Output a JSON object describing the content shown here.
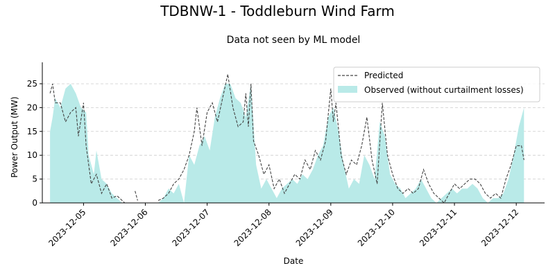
{
  "chart_data": {
    "type": "line",
    "title": "TDBNW-1 - Toddleburn Wind Farm",
    "subtitle": "Data not seen by ML model",
    "xlabel": "Date",
    "ylabel": "Power Output (MW)",
    "ylim": [
      0,
      29.5
    ],
    "xlim": [
      "2023-12-04 08:00",
      "2023-12-12 11:00"
    ],
    "x_ticks": [
      "2023-12-05",
      "2023-12-06",
      "2023-12-07",
      "2023-12-08",
      "2023-12-09",
      "2023-12-10",
      "2023-12-11",
      "2023-12-12"
    ],
    "y_ticks": [
      0,
      5,
      10,
      15,
      20,
      25
    ],
    "grid": "y-dashed",
    "legend_position": "top-right",
    "colors": {
      "predicted": "#444444",
      "observed": "#b9eae8"
    },
    "series": [
      {
        "name": "Predicted",
        "style": "dashed-line",
        "points": [
          [
            "2023-12-04 11:00",
            23
          ],
          [
            "2023-12-04 12:00",
            25
          ],
          [
            "2023-12-04 13:00",
            21
          ],
          [
            "2023-12-04 15:00",
            21
          ],
          [
            "2023-12-04 17:00",
            17
          ],
          [
            "2023-12-04 19:00",
            19
          ],
          [
            "2023-12-04 21:00",
            20
          ],
          [
            "2023-12-04 22:00",
            14
          ],
          [
            "2023-12-05 00:00",
            21
          ],
          [
            "2023-12-05 01:00",
            12
          ],
          [
            "2023-12-05 03:00",
            4
          ],
          [
            "2023-12-05 05:00",
            6
          ],
          [
            "2023-12-05 07:00",
            2
          ],
          [
            "2023-12-05 09:00",
            4
          ],
          [
            "2023-12-05 11:00",
            1
          ],
          [
            "2023-12-05 13:00",
            1.5
          ],
          [
            "2023-12-05 15:00",
            0.5
          ],
          [
            "2023-12-05 16:00",
            0
          ],
          [
            "2023-12-05 19:00",
            null
          ],
          [
            "2023-12-05 20:00",
            2.5
          ],
          [
            "2023-12-05 21:00",
            0.5
          ],
          [
            "2023-12-05 22:00",
            null
          ],
          [
            "2023-12-06 05:00",
            0.5
          ],
          [
            "2023-12-06 07:00",
            1
          ],
          [
            "2023-12-06 09:00",
            2
          ],
          [
            "2023-12-06 11:00",
            4
          ],
          [
            "2023-12-06 13:00",
            5
          ],
          [
            "2023-12-06 15:00",
            7
          ],
          [
            "2023-12-06 17:00",
            10
          ],
          [
            "2023-12-06 19:00",
            15
          ],
          [
            "2023-12-06 20:00",
            20
          ],
          [
            "2023-12-06 22:00",
            12
          ],
          [
            "2023-12-07 00:00",
            19
          ],
          [
            "2023-12-07 02:00",
            21
          ],
          [
            "2023-12-07 04:00",
            17
          ],
          [
            "2023-12-07 06:00",
            22
          ],
          [
            "2023-12-07 08:00",
            27
          ],
          [
            "2023-12-07 10:00",
            20
          ],
          [
            "2023-12-07 12:00",
            16
          ],
          [
            "2023-12-07 14:00",
            17
          ],
          [
            "2023-12-07 15:00",
            23
          ],
          [
            "2023-12-07 16:00",
            16
          ],
          [
            "2023-12-07 17:00",
            25
          ],
          [
            "2023-12-07 18:00",
            13
          ],
          [
            "2023-12-07 20:00",
            10
          ],
          [
            "2023-12-07 22:00",
            6
          ],
          [
            "2023-12-08 00:00",
            8
          ],
          [
            "2023-12-08 02:00",
            3
          ],
          [
            "2023-12-08 04:00",
            5
          ],
          [
            "2023-12-08 06:00",
            2
          ],
          [
            "2023-12-08 08:00",
            4
          ],
          [
            "2023-12-08 10:00",
            6
          ],
          [
            "2023-12-08 12:00",
            5
          ],
          [
            "2023-12-08 14:00",
            9
          ],
          [
            "2023-12-08 16:00",
            7
          ],
          [
            "2023-12-08 18:00",
            11
          ],
          [
            "2023-12-08 20:00",
            9
          ],
          [
            "2023-12-08 22:00",
            13
          ],
          [
            "2023-12-09 00:00",
            24
          ],
          [
            "2023-12-09 01:00",
            17
          ],
          [
            "2023-12-09 02:00",
            21
          ],
          [
            "2023-12-09 04:00",
            10
          ],
          [
            "2023-12-09 06:00",
            6
          ],
          [
            "2023-12-09 08:00",
            9
          ],
          [
            "2023-12-09 10:00",
            8
          ],
          [
            "2023-12-09 12:00",
            12
          ],
          [
            "2023-12-09 14:00",
            18
          ],
          [
            "2023-12-09 16:00",
            9
          ],
          [
            "2023-12-09 18:00",
            4
          ],
          [
            "2023-12-09 20:00",
            21
          ],
          [
            "2023-12-09 22:00",
            10
          ],
          [
            "2023-12-10 00:00",
            6
          ],
          [
            "2023-12-10 02:00",
            3
          ],
          [
            "2023-12-10 04:00",
            2
          ],
          [
            "2023-12-10 06:00",
            3
          ],
          [
            "2023-12-10 08:00",
            2
          ],
          [
            "2023-12-10 10:00",
            3
          ],
          [
            "2023-12-10 12:00",
            7
          ],
          [
            "2023-12-10 14:00",
            4
          ],
          [
            "2023-12-10 16:00",
            2
          ],
          [
            "2023-12-10 18:00",
            1
          ],
          [
            "2023-12-10 20:00",
            0
          ],
          [
            "2023-12-10 22:00",
            2
          ],
          [
            "2023-12-11 00:00",
            4
          ],
          [
            "2023-12-11 02:00",
            3
          ],
          [
            "2023-12-11 04:00",
            4
          ],
          [
            "2023-12-11 06:00",
            5
          ],
          [
            "2023-12-11 08:00",
            5
          ],
          [
            "2023-12-11 10:00",
            4
          ],
          [
            "2023-12-11 12:00",
            2
          ],
          [
            "2023-12-11 14:00",
            1
          ],
          [
            "2023-12-11 16:00",
            2
          ],
          [
            "2023-12-11 18:00",
            1
          ],
          [
            "2023-12-11 20:00",
            5
          ],
          [
            "2023-12-11 22:00",
            8
          ],
          [
            "2023-12-12 00:00",
            12
          ],
          [
            "2023-12-12 02:00",
            12
          ],
          [
            "2023-12-12 03:00",
            9
          ]
        ]
      },
      {
        "name": "Observed (without curtailment losses)",
        "style": "filled-area",
        "points": [
          [
            "2023-12-04 11:00",
            15
          ],
          [
            "2023-12-04 12:00",
            18
          ],
          [
            "2023-12-04 13:00",
            22
          ],
          [
            "2023-12-04 15:00",
            20
          ],
          [
            "2023-12-04 17:00",
            24
          ],
          [
            "2023-12-04 19:00",
            25
          ],
          [
            "2023-12-04 21:00",
            23
          ],
          [
            "2023-12-04 23:00",
            20
          ],
          [
            "2023-12-05 01:00",
            19
          ],
          [
            "2023-12-05 02:00",
            10
          ],
          [
            "2023-12-05 04:00",
            6
          ],
          [
            "2023-12-05 05:00",
            11
          ],
          [
            "2023-12-05 07:00",
            5
          ],
          [
            "2023-12-05 09:00",
            4
          ],
          [
            "2023-12-05 11:00",
            2
          ],
          [
            "2023-12-05 13:00",
            1
          ],
          [
            "2023-12-05 15:00",
            0
          ],
          [
            "2023-12-06 05:00",
            0
          ],
          [
            "2023-12-06 07:00",
            1
          ],
          [
            "2023-12-06 09:00",
            3
          ],
          [
            "2023-12-06 11:00",
            2
          ],
          [
            "2023-12-06 13:00",
            4
          ],
          [
            "2023-12-06 15:00",
            0
          ],
          [
            "2023-12-06 17:00",
            10
          ],
          [
            "2023-12-06 19:00",
            8
          ],
          [
            "2023-12-06 21:00",
            12
          ],
          [
            "2023-12-06 23:00",
            14
          ],
          [
            "2023-12-07 01:00",
            11
          ],
          [
            "2023-12-07 03:00",
            18
          ],
          [
            "2023-12-07 05:00",
            22
          ],
          [
            "2023-12-07 07:00",
            25
          ],
          [
            "2023-12-07 09:00",
            25
          ],
          [
            "2023-12-07 11:00",
            22
          ],
          [
            "2023-12-07 13:00",
            21
          ],
          [
            "2023-12-07 15:00",
            18
          ],
          [
            "2023-12-07 17:00",
            25
          ],
          [
            "2023-12-07 19:00",
            8
          ],
          [
            "2023-12-07 21:00",
            3
          ],
          [
            "2023-12-07 23:00",
            5
          ],
          [
            "2023-12-08 01:00",
            3
          ],
          [
            "2023-12-08 03:00",
            1
          ],
          [
            "2023-12-08 05:00",
            3
          ],
          [
            "2023-12-08 07:00",
            4
          ],
          [
            "2023-12-08 09:00",
            5
          ],
          [
            "2023-12-08 11:00",
            4
          ],
          [
            "2023-12-08 13:00",
            6
          ],
          [
            "2023-12-08 15:00",
            5
          ],
          [
            "2023-12-08 17:00",
            7
          ],
          [
            "2023-12-08 19:00",
            10
          ],
          [
            "2023-12-08 21:00",
            12
          ],
          [
            "2023-12-08 23:00",
            18
          ],
          [
            "2023-12-09 01:00",
            20
          ],
          [
            "2023-12-09 03:00",
            15
          ],
          [
            "2023-12-09 05:00",
            8
          ],
          [
            "2023-12-09 07:00",
            3
          ],
          [
            "2023-12-09 09:00",
            5
          ],
          [
            "2023-12-09 11:00",
            4
          ],
          [
            "2023-12-09 13:00",
            10
          ],
          [
            "2023-12-09 15:00",
            8
          ],
          [
            "2023-12-09 17:00",
            5
          ],
          [
            "2023-12-09 19:00",
            17
          ],
          [
            "2023-12-09 21:00",
            14
          ],
          [
            "2023-12-09 23:00",
            6
          ],
          [
            "2023-12-10 01:00",
            4
          ],
          [
            "2023-12-10 03:00",
            3
          ],
          [
            "2023-12-10 05:00",
            1
          ],
          [
            "2023-12-10 07:00",
            2
          ],
          [
            "2023-12-10 09:00",
            3
          ],
          [
            "2023-12-10 11:00",
            5
          ],
          [
            "2023-12-10 13:00",
            3
          ],
          [
            "2023-12-10 15:00",
            1
          ],
          [
            "2023-12-10 17:00",
            0
          ],
          [
            "2023-12-10 19:00",
            1
          ],
          [
            "2023-12-10 21:00",
            2
          ],
          [
            "2023-12-10 23:00",
            3
          ],
          [
            "2023-12-11 01:00",
            2
          ],
          [
            "2023-12-11 03:00",
            3
          ],
          [
            "2023-12-11 05:00",
            3
          ],
          [
            "2023-12-11 07:00",
            4
          ],
          [
            "2023-12-11 09:00",
            3
          ],
          [
            "2023-12-11 11:00",
            1
          ],
          [
            "2023-12-11 13:00",
            0
          ],
          [
            "2023-12-11 15:00",
            1
          ],
          [
            "2023-12-11 17:00",
            1
          ],
          [
            "2023-12-11 19:00",
            2
          ],
          [
            "2023-12-11 21:00",
            5
          ],
          [
            "2023-12-11 23:00",
            10
          ],
          [
            "2023-12-12 01:00",
            16
          ],
          [
            "2023-12-12 02:00",
            18
          ],
          [
            "2023-12-12 03:00",
            20
          ]
        ]
      }
    ]
  }
}
